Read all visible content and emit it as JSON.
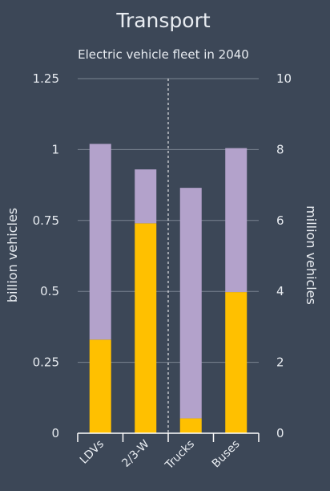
{
  "chart_data": {
    "type": "bar",
    "stacked": true,
    "title": "Transport",
    "subtitle": "Electric vehicle fleet in 2040",
    "ylabel_left": "billion vehicles",
    "ylabel_right": "million vehicles",
    "categories": [
      "LDVs",
      "2/3-W",
      "Trucks",
      "Buses"
    ],
    "category_axis": [
      "left",
      "left",
      "right",
      "right"
    ],
    "ylim_left": [
      0,
      1.25
    ],
    "ylim_right": [
      0,
      10
    ],
    "left_ticks": [
      "0",
      "0.25",
      "0.5",
      "0.75",
      "1",
      "1.25"
    ],
    "right_ticks": [
      "0",
      "2",
      "4",
      "6",
      "8",
      "10"
    ],
    "series": [
      {
        "values": [
          0.33,
          0.74,
          0.42,
          3.98
        ],
        "color": "#ffc000"
      },
      {
        "values": [
          0.69,
          0.19,
          6.5,
          4.06
        ],
        "color": "#b3a2cb"
      }
    ],
    "grid": true,
    "divider_between": [
      "2/3-W",
      "Trucks"
    ]
  },
  "colors": {
    "background": "#3c4757",
    "grid": "#7a8492",
    "text": "#e8ecf1"
  }
}
